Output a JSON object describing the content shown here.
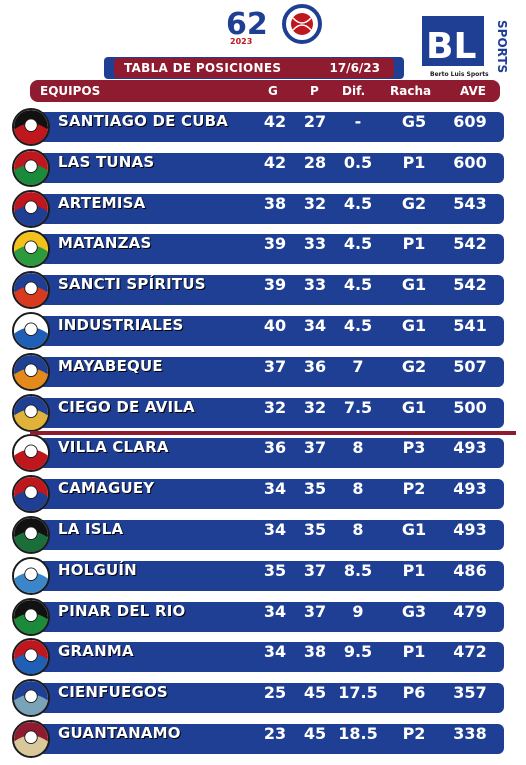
{
  "header_logo": {
    "number": "62",
    "year": "2023",
    "icon": "serie-nacional-baseball-logo"
  },
  "brand": {
    "name": "BLSPORTS",
    "tagline": "Berto Luis Sports",
    "icon": "bl-sports-logo"
  },
  "title": {
    "text": "TABLA DE POSICIONES",
    "date": "17/6/23"
  },
  "columns": {
    "team": "EQUIPOS",
    "g": "G",
    "p": "P",
    "dif": "Dif.",
    "racha": "Racha",
    "ave": "AVE"
  },
  "colors": {
    "blue": "#1f3f95",
    "maroon": "#8e1b2f"
  },
  "teams": [
    {
      "name": "SANTIAGO DE CUBA",
      "g": "42",
      "p": "27",
      "dif": "-",
      "racha": "G5",
      "ave": "609",
      "icon": "santiago-logo-icon",
      "c1": "#c0161d",
      "c2": "#111111"
    },
    {
      "name": "LAS TUNAS",
      "g": "42",
      "p": "28",
      "dif": "0.5",
      "racha": "P1",
      "ave": "600",
      "icon": "las-tunas-logo-icon",
      "c1": "#1b8a3a",
      "c2": "#c0161d"
    },
    {
      "name": "ARTEMISA",
      "g": "38",
      "p": "32",
      "dif": "4.5",
      "racha": "G2",
      "ave": "543",
      "icon": "artemisa-logo-icon",
      "c1": "#1f3f95",
      "c2": "#c0161d"
    },
    {
      "name": "MATANZAS",
      "g": "39",
      "p": "33",
      "dif": "4.5",
      "racha": "P1",
      "ave": "542",
      "icon": "matanzas-logo-icon",
      "c1": "#2e9a3e",
      "c2": "#f2c21a"
    },
    {
      "name": "SANCTI SPÍRITUS",
      "g": "39",
      "p": "33",
      "dif": "4.5",
      "racha": "G1",
      "ave": "542",
      "icon": "sancti-spiritus-logo-icon",
      "c1": "#d93a1f",
      "c2": "#1f3f95"
    },
    {
      "name": "INDUSTRIALES",
      "g": "40",
      "p": "34",
      "dif": "4.5",
      "racha": "G1",
      "ave": "541",
      "icon": "industriales-logo-icon",
      "c1": "#1f5fb5",
      "c2": "#ffffff"
    },
    {
      "name": "MAYABEQUE",
      "g": "37",
      "p": "36",
      "dif": "7",
      "racha": "G2",
      "ave": "507",
      "icon": "mayabeque-logo-icon",
      "c1": "#e48a1c",
      "c2": "#1f3f95"
    },
    {
      "name": "CIEGO DE AVILA",
      "g": "32",
      "p": "32",
      "dif": "7.5",
      "racha": "G1",
      "ave": "500",
      "icon": "ciego-de-avila-logo-icon",
      "c1": "#e0b23a",
      "c2": "#1f3f95"
    },
    {
      "name": "VILLA CLARA",
      "g": "36",
      "p": "37",
      "dif": "8",
      "racha": "P3",
      "ave": "493",
      "icon": "villa-clara-logo-icon",
      "c1": "#c0161d",
      "c2": "#ffffff"
    },
    {
      "name": "CAMAGUEY",
      "g": "34",
      "p": "35",
      "dif": "8",
      "racha": "P2",
      "ave": "493",
      "icon": "camaguey-logo-icon",
      "c1": "#1f3f95",
      "c2": "#c0161d"
    },
    {
      "name": "LA ISLA",
      "g": "34",
      "p": "35",
      "dif": "8",
      "racha": "G1",
      "ave": "493",
      "icon": "la-isla-logo-icon",
      "c1": "#1b6e3a",
      "c2": "#111111"
    },
    {
      "name": "HOLGUÍN",
      "g": "35",
      "p": "37",
      "dif": "8.5",
      "racha": "P1",
      "ave": "486",
      "icon": "holguin-logo-icon",
      "c1": "#3a86c8",
      "c2": "#ffffff"
    },
    {
      "name": "PINAR DEL RIO",
      "g": "34",
      "p": "37",
      "dif": "9",
      "racha": "G3",
      "ave": "479",
      "icon": "pinar-del-rio-logo-icon",
      "c1": "#1b8a3a",
      "c2": "#111111"
    },
    {
      "name": "GRANMA",
      "g": "34",
      "p": "38",
      "dif": "9.5",
      "racha": "P1",
      "ave": "472",
      "icon": "granma-logo-icon",
      "c1": "#1f5fb5",
      "c2": "#c0161d"
    },
    {
      "name": "CIENFUEGOS",
      "g": "25",
      "p": "45",
      "dif": "17.5",
      "racha": "P6",
      "ave": "357",
      "icon": "cienfuegos-logo-icon",
      "c1": "#7aa3b8",
      "c2": "#1f3f95"
    },
    {
      "name": "GUANTANAMO",
      "g": "23",
      "p": "45",
      "dif": "18.5",
      "racha": "P2",
      "ave": "338",
      "icon": "guantanamo-logo-icon",
      "c1": "#d8c89a",
      "c2": "#8e1b2f"
    }
  ]
}
